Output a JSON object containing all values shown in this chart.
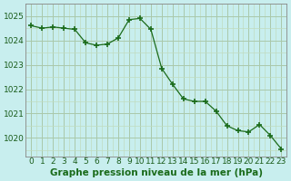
{
  "x": [
    0,
    1,
    2,
    3,
    4,
    5,
    6,
    7,
    8,
    9,
    10,
    11,
    12,
    13,
    14,
    15,
    16,
    17,
    18,
    19,
    20,
    21,
    22,
    23
  ],
  "y": [
    1024.6,
    1024.5,
    1024.55,
    1024.5,
    1024.45,
    1023.9,
    1023.8,
    1023.85,
    1024.1,
    1024.85,
    1024.9,
    1024.45,
    1022.85,
    1022.2,
    1021.6,
    1021.5,
    1021.5,
    1021.1,
    1020.5,
    1020.3,
    1020.25,
    1020.55,
    1020.1,
    1019.55
  ],
  "line_color": "#1a6b1a",
  "marker_color": "#1a6b1a",
  "bg_color": "#c8eeee",
  "grid_color_major": "#aac8aa",
  "grid_color_minor": "#c0dcc0",
  "xlabel": "Graphe pression niveau de la mer (hPa)",
  "ylim": [
    1019.25,
    1025.5
  ],
  "xlim": [
    -0.5,
    23.5
  ],
  "yticks": [
    1020,
    1021,
    1022,
    1023,
    1024,
    1025
  ],
  "xticks": [
    0,
    1,
    2,
    3,
    4,
    5,
    6,
    7,
    8,
    9,
    10,
    11,
    12,
    13,
    14,
    15,
    16,
    17,
    18,
    19,
    20,
    21,
    22,
    23
  ],
  "xlabel_fontsize": 7.5,
  "tick_fontsize": 6.5
}
